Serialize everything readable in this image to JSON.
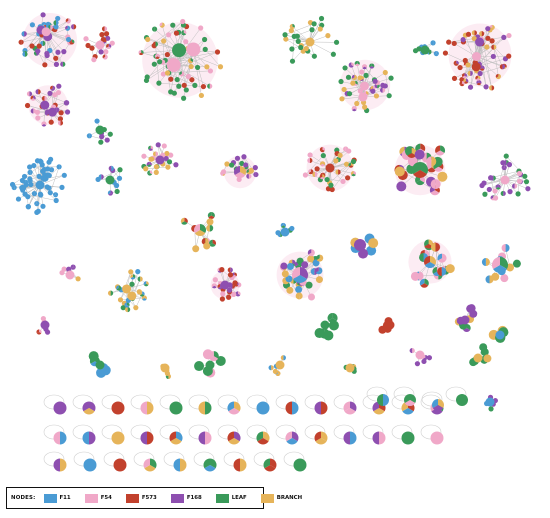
{
  "legend": {
    "title": "NODES:",
    "items": [
      {
        "label": "F11",
        "color": "#4a9bd4"
      },
      {
        "label": "F54",
        "color": "#f0a8c8"
      },
      {
        "label": "F573",
        "color": "#c2412d"
      },
      {
        "label": "F168",
        "color": "#8e4fb0"
      },
      {
        "label": "LEAF",
        "color": "#3a9a5a"
      },
      {
        "label": "BRANCH",
        "color": "#e6b45a"
      }
    ]
  }
}
